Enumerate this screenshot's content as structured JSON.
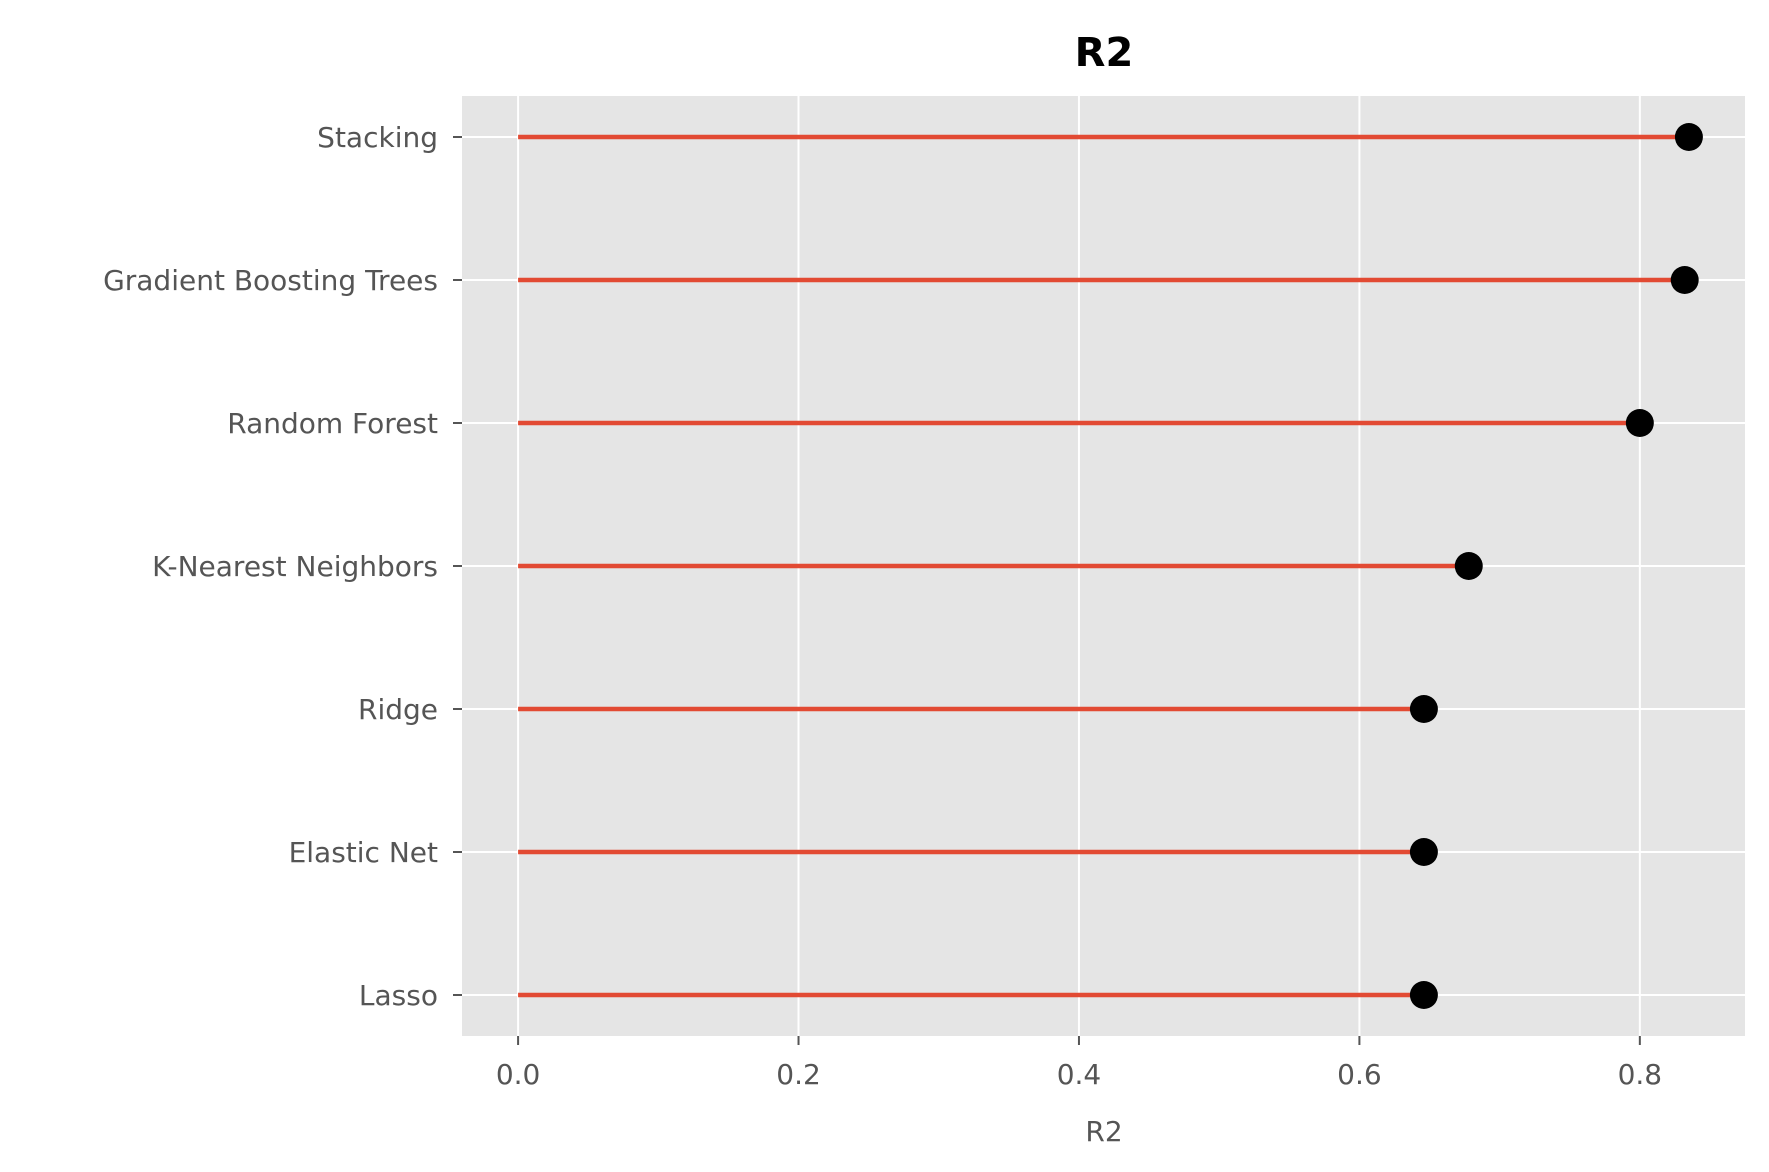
{
  "chart_data": {
    "type": "lollipop",
    "title": "R2",
    "xlabel": "R2",
    "ylabel": "",
    "xlim": [
      -0.04,
      0.875
    ],
    "xticks": [
      0.0,
      0.2,
      0.4,
      0.6,
      0.8
    ],
    "xtick_labels": [
      "0.0",
      "0.2",
      "0.4",
      "0.6",
      "0.8"
    ],
    "grid": true,
    "categories": [
      "Lasso",
      "Elastic Net",
      "Ridge",
      "K-Nearest Neighbors",
      "Random Forest",
      "Gradient Boosting Trees",
      "Stacking"
    ],
    "values": [
      0.646,
      0.646,
      0.646,
      0.678,
      0.8,
      0.832,
      0.835
    ],
    "colors": {
      "stem": "#E24A33",
      "marker": "#000000",
      "plot_bg": "#E5E5E5",
      "grid": "#FFFFFF",
      "tick_text": "#555555"
    }
  }
}
